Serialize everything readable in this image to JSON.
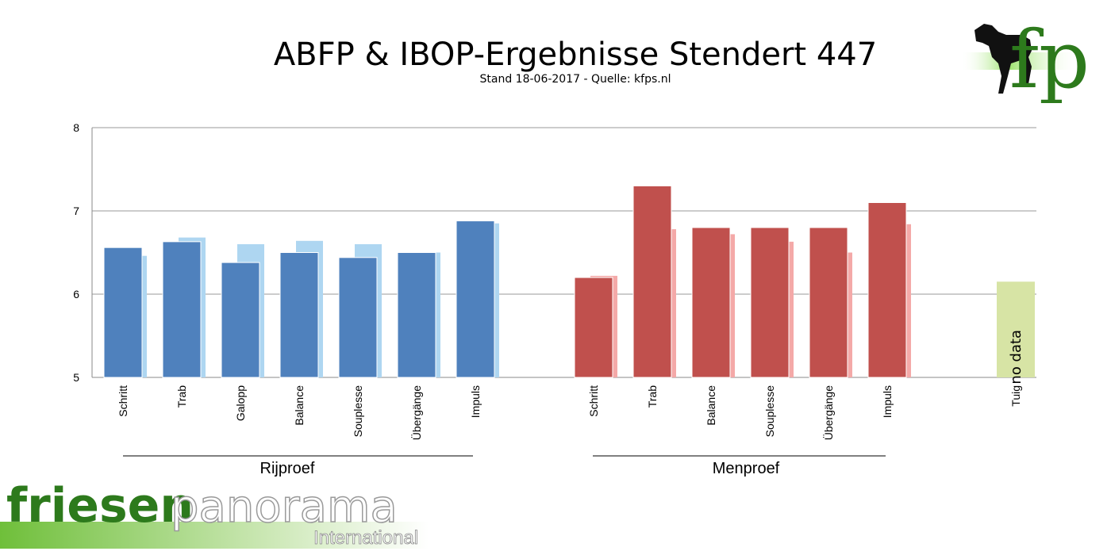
{
  "title": "ABFP & IBOP-Ergebnisse Stendert 447",
  "subtitle": "Stand 18-06-2017 - Quelle: kfps.nl",
  "logos": {
    "kfps_text": "fp",
    "friesen_text": "friesen",
    "panorama_text": "panorama",
    "international_text": "International"
  },
  "colors": {
    "rijproef_main": "#4f81bd",
    "rijproef_light": "#aed6f1",
    "menproef_main": "#c0504d",
    "menproef_light": "#f4a9a8",
    "tuig": "#d7e4a5",
    "logo_green": "#2d7a1c"
  },
  "chart_data": {
    "type": "bar",
    "ylim": [
      5,
      8
    ],
    "yticks": [
      5,
      6,
      7,
      8
    ],
    "grid": true,
    "groups": [
      {
        "name": "Rijproef",
        "categories": [
          "Schritt",
          "Trab",
          "Galopp",
          "Balance",
          "Souplesse",
          "Übergänge",
          "Impuls"
        ],
        "series": [
          {
            "values": [
              6.56,
              6.63,
              6.38,
              6.5,
              6.44,
              6.5,
              6.88
            ]
          },
          {
            "values": [
              6.46,
              6.68,
              6.6,
              6.64,
              6.6,
              6.5,
              6.85
            ]
          }
        ]
      },
      {
        "name": "Menproef",
        "categories": [
          "Schritt",
          "Trab",
          "Balance",
          "Souplesse",
          "Übergänge",
          "Impuls"
        ],
        "series": [
          {
            "values": [
              6.2,
              7.3,
              6.8,
              6.8,
              6.8,
              7.1
            ]
          },
          {
            "values": [
              6.22,
              6.78,
              6.72,
              6.63,
              6.5,
              6.84
            ]
          }
        ]
      },
      {
        "name": "",
        "categories": [
          "Tuig"
        ],
        "series": [
          {
            "values": [
              6.15
            ]
          }
        ],
        "annotation": "no data"
      }
    ]
  }
}
